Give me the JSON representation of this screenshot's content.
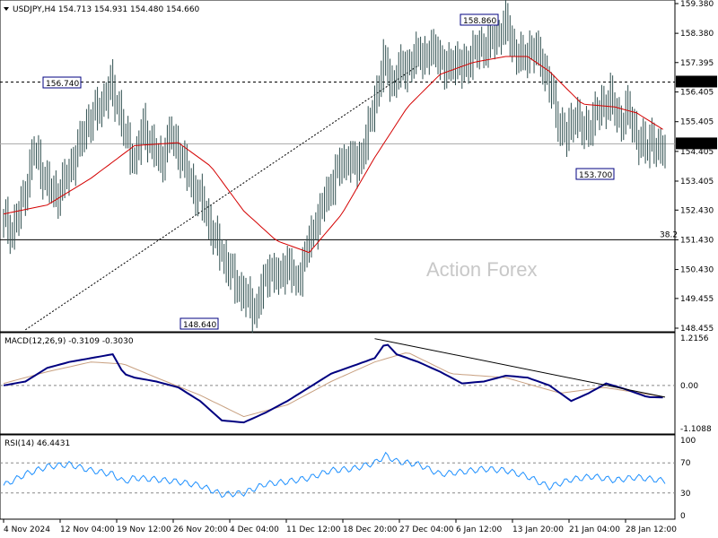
{
  "chart_data": [
    {
      "type": "candlestick",
      "title": "USDJPY,H4  154.713 154.931 154.480 154.660",
      "watermark": "Action Forex",
      "ylim": [
        148.455,
        159.38
      ],
      "y_ticks": [
        "159.380",
        "158.380",
        "157.395",
        "156.405",
        "155.405",
        "154.405",
        "153.405",
        "152.430",
        "151.430",
        "150.430",
        "149.455",
        "148.455"
      ],
      "current_price_label": "154.660",
      "horizontal_line_label": "156.740",
      "fib_label": "38.2",
      "fib_level": 151.43,
      "annotations": [
        {
          "label": "158.860",
          "value": 158.86
        },
        {
          "label": "156.740",
          "value": 156.74
        },
        {
          "label": "148.640",
          "value": 148.64
        },
        {
          "label": "153.700",
          "value": 153.7
        }
      ],
      "x_tick_labels": [
        "4 Nov 2024",
        "12 Nov 04:00",
        "19 Nov 12:00",
        "26 Nov 20:00",
        "4 Dec 04:00",
        "11 Dec 12:00",
        "18 Dec 20:00",
        "27 Dec 04:00",
        "6 Jan 12:00",
        "13 Jan 20:00",
        "21 Jan 04:00",
        "28 Jan 12:00"
      ],
      "price_path": [
        [
          0,
          152.1
        ],
        [
          4,
          151.7
        ],
        [
          9,
          152.8
        ],
        [
          14,
          154.5
        ],
        [
          19,
          153.4
        ],
        [
          24,
          152.9
        ],
        [
          28,
          153.4
        ],
        [
          33,
          154.3
        ],
        [
          38,
          155.3
        ],
        [
          44,
          155.9
        ],
        [
          49,
          156.6
        ],
        [
          53,
          155.8
        ],
        [
          56,
          154.8
        ],
        [
          60,
          154.1
        ],
        [
          64,
          155.2
        ],
        [
          68,
          154.6
        ],
        [
          72,
          154.0
        ],
        [
          76,
          155.0
        ],
        [
          81,
          154.3
        ],
        [
          86,
          153.3
        ],
        [
          91,
          152.7
        ],
        [
          96,
          151.6
        ],
        [
          101,
          150.8
        ],
        [
          106,
          150.0
        ],
        [
          111,
          149.5
        ],
        [
          115,
          149.0
        ],
        [
          118,
          149.7
        ],
        [
          122,
          150.5
        ],
        [
          126,
          150.1
        ],
        [
          130,
          150.7
        ],
        [
          134,
          149.9
        ],
        [
          138,
          150.9
        ],
        [
          143,
          152.0
        ],
        [
          148,
          152.9
        ],
        [
          153,
          153.8
        ],
        [
          158,
          154.2
        ],
        [
          162,
          153.9
        ],
        [
          166,
          154.8
        ],
        [
          170,
          156.1
        ],
        [
          174,
          157.4
        ],
        [
          178,
          156.7
        ],
        [
          182,
          157.2
        ],
        [
          186,
          157.3
        ],
        [
          190,
          157.7
        ],
        [
          194,
          157.6
        ],
        [
          198,
          157.9
        ],
        [
          202,
          157.1
        ],
        [
          206,
          157.5
        ],
        [
          210,
          157.2
        ],
        [
          214,
          157.6
        ],
        [
          218,
          157.9
        ],
        [
          222,
          158.0
        ],
        [
          226,
          158.3
        ],
        [
          230,
          158.7
        ],
        [
          234,
          157.8
        ],
        [
          238,
          157.5
        ],
        [
          242,
          157.9
        ],
        [
          246,
          157.5
        ],
        [
          250,
          156.7
        ],
        [
          254,
          155.4
        ],
        [
          258,
          154.9
        ],
        [
          262,
          155.7
        ],
        [
          266,
          155.0
        ],
        [
          270,
          155.5
        ],
        [
          274,
          155.9
        ],
        [
          278,
          156.2
        ],
        [
          282,
          155.4
        ],
        [
          286,
          155.8
        ],
        [
          290,
          154.9
        ],
        [
          294,
          154.5
        ],
        [
          297,
          154.9
        ],
        [
          300,
          154.3
        ],
        [
          303,
          154.66
        ]
      ],
      "moving_average_path": [
        [
          0,
          152.3
        ],
        [
          20,
          152.6
        ],
        [
          40,
          153.5
        ],
        [
          60,
          154.6
        ],
        [
          80,
          154.7
        ],
        [
          95,
          153.9
        ],
        [
          110,
          152.4
        ],
        [
          125,
          151.4
        ],
        [
          140,
          151.0
        ],
        [
          155,
          152.3
        ],
        [
          170,
          154.2
        ],
        [
          185,
          155.9
        ],
        [
          200,
          157.0
        ],
        [
          215,
          157.4
        ],
        [
          230,
          157.6
        ],
        [
          240,
          157.6
        ],
        [
          250,
          157.1
        ],
        [
          265,
          156.0
        ],
        [
          280,
          155.9
        ],
        [
          290,
          155.7
        ],
        [
          303,
          155.1
        ]
      ]
    },
    {
      "type": "line",
      "title": "MACD(12,26,9) -0.3109 -0.3030",
      "ylim": [
        -1.1088,
        1.2156
      ],
      "y_ticks": [
        "1.2156",
        "0.00",
        "-1.1088"
      ],
      "macd_line": [
        [
          0,
          0.0
        ],
        [
          10,
          0.1
        ],
        [
          20,
          0.45
        ],
        [
          30,
          0.6
        ],
        [
          40,
          0.7
        ],
        [
          50,
          0.8
        ],
        [
          55,
          0.3
        ],
        [
          60,
          0.2
        ],
        [
          70,
          0.1
        ],
        [
          80,
          -0.05
        ],
        [
          90,
          -0.4
        ],
        [
          100,
          -0.9
        ],
        [
          110,
          -0.95
        ],
        [
          120,
          -0.7
        ],
        [
          130,
          -0.4
        ],
        [
          140,
          -0.05
        ],
        [
          150,
          0.3
        ],
        [
          160,
          0.5
        ],
        [
          170,
          0.7
        ],
        [
          175,
          1.1
        ],
        [
          180,
          0.8
        ],
        [
          190,
          0.6
        ],
        [
          200,
          0.35
        ],
        [
          210,
          0.05
        ],
        [
          220,
          0.1
        ],
        [
          230,
          0.25
        ],
        [
          240,
          0.2
        ],
        [
          250,
          0.0
        ],
        [
          260,
          -0.4
        ],
        [
          268,
          -0.2
        ],
        [
          276,
          0.05
        ],
        [
          285,
          -0.1
        ],
        [
          295,
          -0.3
        ],
        [
          303,
          -0.31
        ]
      ],
      "signal_line": [
        [
          0,
          0.05
        ],
        [
          20,
          0.35
        ],
        [
          40,
          0.6
        ],
        [
          55,
          0.55
        ],
        [
          70,
          0.2
        ],
        [
          90,
          -0.25
        ],
        [
          110,
          -0.8
        ],
        [
          130,
          -0.5
        ],
        [
          150,
          0.1
        ],
        [
          170,
          0.6
        ],
        [
          185,
          0.85
        ],
        [
          205,
          0.3
        ],
        [
          230,
          0.2
        ],
        [
          255,
          -0.2
        ],
        [
          275,
          -0.05
        ],
        [
          303,
          -0.3
        ]
      ],
      "trendline": [
        [
          170,
          1.2
        ],
        [
          303,
          -0.3
        ]
      ]
    },
    {
      "type": "line",
      "title": "RSI(14) 46.4431",
      "ylim": [
        0,
        100
      ],
      "y_ticks": [
        "100",
        "70",
        "30",
        "0"
      ],
      "rsi_path": [
        [
          0,
          40
        ],
        [
          10,
          55
        ],
        [
          20,
          65
        ],
        [
          30,
          68
        ],
        [
          40,
          60
        ],
        [
          50,
          55
        ],
        [
          55,
          45
        ],
        [
          60,
          50
        ],
        [
          70,
          48
        ],
        [
          80,
          45
        ],
        [
          90,
          40
        ],
        [
          100,
          28
        ],
        [
          110,
          30
        ],
        [
          120,
          42
        ],
        [
          130,
          45
        ],
        [
          140,
          50
        ],
        [
          150,
          60
        ],
        [
          160,
          62
        ],
        [
          170,
          70
        ],
        [
          175,
          80
        ],
        [
          180,
          72
        ],
        [
          190,
          68
        ],
        [
          200,
          55
        ],
        [
          210,
          58
        ],
        [
          220,
          62
        ],
        [
          230,
          60
        ],
        [
          240,
          52
        ],
        [
          250,
          38
        ],
        [
          260,
          48
        ],
        [
          270,
          52
        ],
        [
          280,
          47
        ],
        [
          290,
          51
        ],
        [
          303,
          46
        ]
      ]
    }
  ]
}
